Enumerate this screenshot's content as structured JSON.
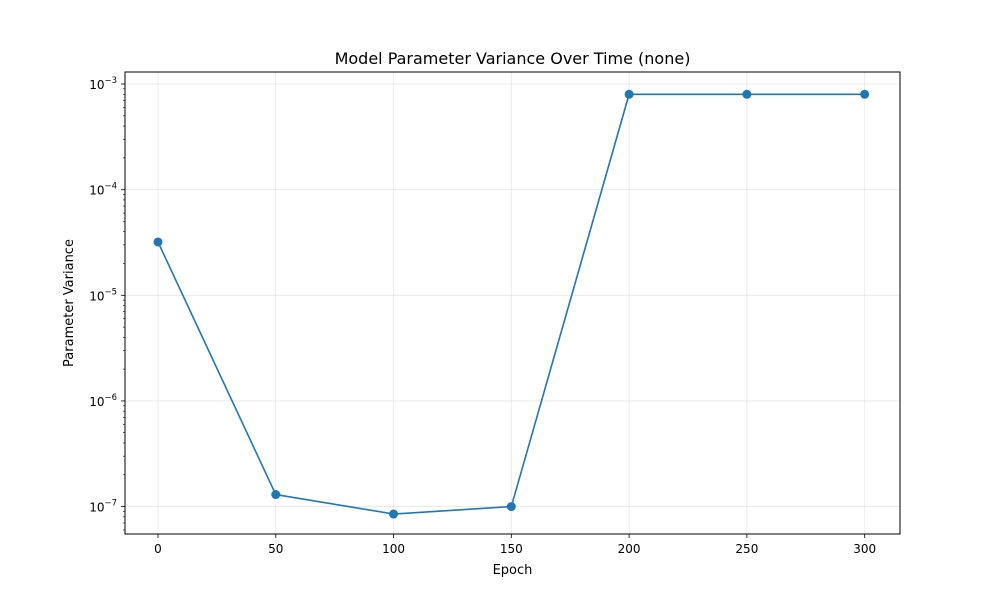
{
  "chart_data": {
    "type": "line",
    "title": "Model Parameter Variance Over Time (none)",
    "xlabel": "Epoch",
    "ylabel": "Parameter Variance",
    "x": [
      0,
      50,
      100,
      150,
      200,
      250,
      300
    ],
    "series": [
      {
        "values": [
          3.2e-05,
          1.3e-07,
          8.5e-08,
          1e-07,
          0.0008,
          0.0008,
          0.0008
        ],
        "color": "#1f77b4",
        "marker": "circle"
      }
    ],
    "xticks": [
      0,
      50,
      100,
      150,
      200,
      250,
      300
    ],
    "yticks": [
      {
        "base": "10",
        "exp": "−7",
        "value": 1e-07
      },
      {
        "base": "10",
        "exp": "−6",
        "value": 1e-06
      },
      {
        "base": "10",
        "exp": "−5",
        "value": 1e-05
      },
      {
        "base": "10",
        "exp": "−4",
        "value": 0.0001
      },
      {
        "base": "10",
        "exp": "−3",
        "value": 0.001
      }
    ],
    "xlim": [
      -14,
      315
    ],
    "ylim": [
      5.5e-08,
      0.0013
    ],
    "yscale": "log",
    "grid": true,
    "legend": "none"
  }
}
